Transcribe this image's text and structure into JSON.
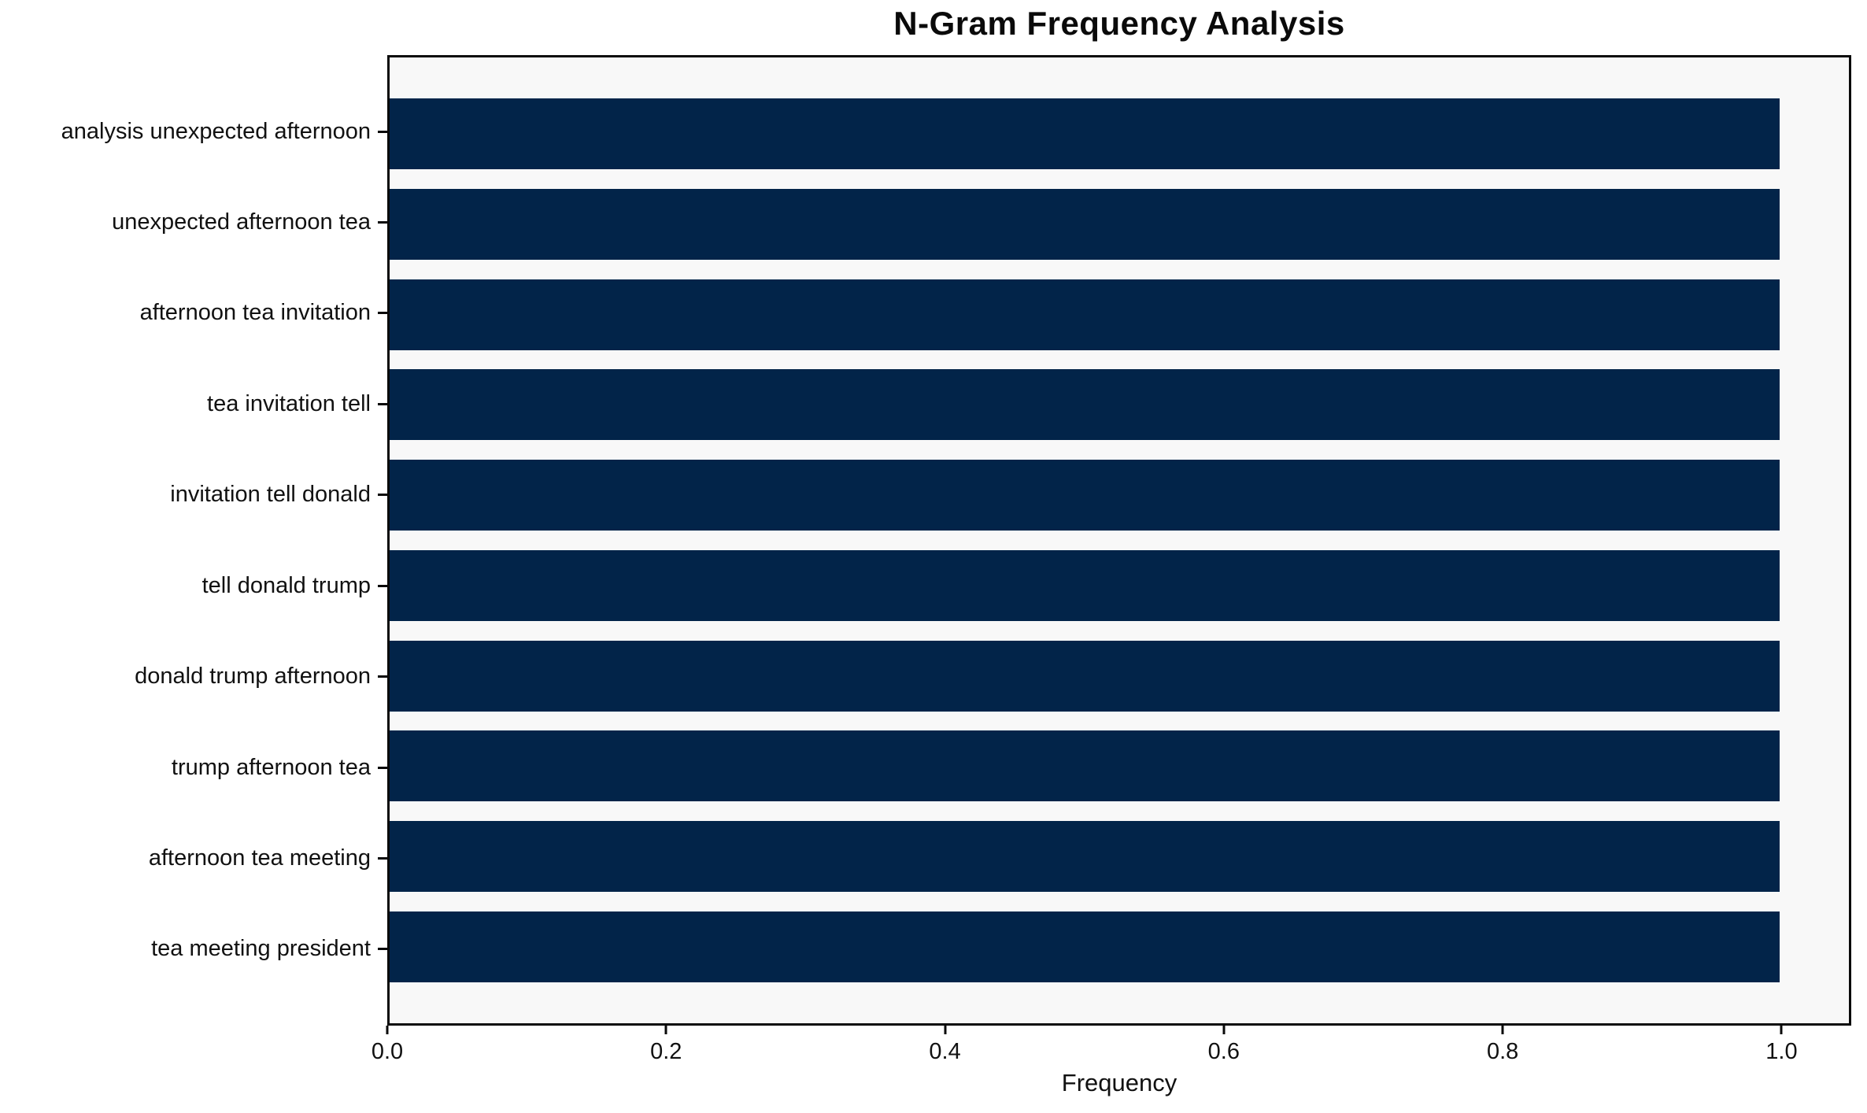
{
  "title": "N-Gram Frequency Analysis",
  "chart_data": {
    "type": "bar",
    "orientation": "horizontal",
    "title": "N-Gram Frequency Analysis",
    "xlabel": "Frequency",
    "ylabel": "",
    "categories": [
      "analysis unexpected afternoon",
      "unexpected afternoon tea",
      "afternoon tea invitation",
      "tea invitation tell",
      "invitation tell donald",
      "tell donald trump",
      "donald trump afternoon",
      "trump afternoon tea",
      "afternoon tea meeting",
      "tea meeting president"
    ],
    "values": [
      1.0,
      1.0,
      1.0,
      1.0,
      1.0,
      1.0,
      1.0,
      1.0,
      1.0,
      1.0
    ],
    "xticks": [
      0.0,
      0.2,
      0.4,
      0.6,
      0.8,
      1.0
    ],
    "xtick_labels": [
      "0.0",
      "0.2",
      "0.4",
      "0.6",
      "0.8",
      "1.0"
    ],
    "xlim": [
      0,
      1.05
    ],
    "grid": false,
    "legend": false,
    "bar_color": "#022449",
    "plot_background": "#f8f8f8",
    "spine_color": "#0a0a0a"
  }
}
